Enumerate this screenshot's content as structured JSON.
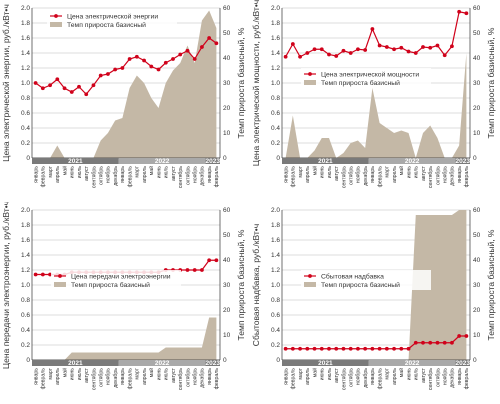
{
  "colors": {
    "line": "#d0021b",
    "area": "#c4b8a6",
    "grid": "#bdbdbd",
    "axis": "#333333",
    "year_band_dark": "#7a7a7a",
    "year_band_light": "#a9a9a9"
  },
  "months": [
    "январь",
    "февраль",
    "март",
    "апрель",
    "май",
    "июнь",
    "июль",
    "август",
    "сентябрь",
    "октябрь",
    "ноябрь",
    "декабрь",
    "январь",
    "февраль",
    "март",
    "апрель",
    "май",
    "июнь",
    "июль",
    "август",
    "сентябрь",
    "октябрь",
    "ноябрь",
    "декабрь",
    "январь",
    "февраль"
  ],
  "years": [
    {
      "label": "2021",
      "start": 0,
      "end": 11
    },
    {
      "label": "2022",
      "start": 12,
      "end": 23
    },
    {
      "label": "2023",
      "start": 24,
      "end": 25
    }
  ],
  "chart_data": [
    {
      "type": "line",
      "ylabel": "Цена электрической энергии, руб./кВт•ч",
      "y2label": "Темп прироста базисный, %",
      "ylim": [
        0,
        2.0
      ],
      "y_ticks": [
        "0",
        "0.2",
        "0.4",
        "0.6",
        "0.8",
        "1.0",
        "1.2",
        "1.4",
        "1.6",
        "1.8",
        "2.0"
      ],
      "y2lim": [
        0,
        60
      ],
      "y2_ticks": [
        "0",
        "10",
        "20",
        "30",
        "40",
        "50",
        "60"
      ],
      "legend": [
        "Цена электрической энергии",
        "Темп прироста базисный"
      ],
      "legend_position": "top-left",
      "series": [
        {
          "name": "Цена электрической энергии",
          "axis": "left",
          "values": [
            1.0,
            0.93,
            0.97,
            1.05,
            0.93,
            0.88,
            0.95,
            0.85,
            0.97,
            1.1,
            1.12,
            1.18,
            1.2,
            1.32,
            1.35,
            1.3,
            1.22,
            1.18,
            1.27,
            1.32,
            1.38,
            1.43,
            1.32,
            1.48,
            1.6,
            1.53
          ]
        },
        {
          "name": "Темп прироста базисный",
          "axis": "right",
          "values": [
            0,
            0,
            0,
            5,
            0,
            0,
            0,
            0,
            0,
            7,
            10,
            15,
            16,
            28,
            33,
            30,
            24,
            20,
            30,
            35,
            38,
            45,
            38,
            55,
            59,
            52
          ]
        }
      ]
    },
    {
      "type": "line",
      "ylabel": "Цена электрической мощности, руб./кВт•ч",
      "y2label": "Темп прироста базисный, %",
      "ylim": [
        0,
        2.0
      ],
      "y_ticks": [
        "0",
        "0.2",
        "0.4",
        "0.6",
        "0.8",
        "1.0",
        "1.2",
        "1.4",
        "1.6",
        "1.8",
        "2.0"
      ],
      "y2lim": [
        0,
        60
      ],
      "y2_ticks": [
        "0",
        "10",
        "20",
        "30",
        "40",
        "50",
        "60"
      ],
      "legend": [
        "Цена электрической мощности",
        "Темп прироста базисный"
      ],
      "legend_position": "center",
      "series": [
        {
          "name": "Цена электрической мощности",
          "axis": "left",
          "values": [
            1.35,
            1.52,
            1.35,
            1.4,
            1.45,
            1.45,
            1.38,
            1.36,
            1.43,
            1.4,
            1.45,
            1.44,
            1.72,
            1.5,
            1.48,
            1.45,
            1.47,
            1.42,
            1.4,
            1.48,
            1.47,
            1.5,
            1.37,
            1.49,
            1.95,
            1.93
          ]
        },
        {
          "name": "Темп прироста базисный",
          "axis": "right",
          "values": [
            0,
            17,
            0,
            0,
            3,
            8,
            8,
            0,
            2,
            6,
            7,
            4,
            28,
            14,
            12,
            10,
            11,
            10,
            0,
            10,
            13,
            8,
            0,
            0,
            5,
            42
          ]
        }
      ]
    },
    {
      "type": "line",
      "ylabel": "Цена передачи электроэнергии, руб./кВт•ч",
      "y2label": "Темп прироста базисный, %",
      "ylim": [
        0,
        2.0
      ],
      "y_ticks": [
        "0",
        "0.2",
        "0.4",
        "0.6",
        "0.8",
        "1.0",
        "1.2",
        "1.4",
        "1.6",
        "1.8",
        "2.0"
      ],
      "y2lim": [
        0,
        60
      ],
      "y2_ticks": [
        "0",
        "10",
        "20",
        "30",
        "40",
        "50",
        "60"
      ],
      "legend": [
        "Цена передачи электроэнергии",
        "Темп прироста базисный"
      ],
      "legend_position": "center",
      "series": [
        {
          "name": "Цена передачи электроэнергии",
          "axis": "left",
          "values": [
            1.14,
            1.14,
            1.14,
            1.14,
            1.14,
            1.17,
            1.17,
            1.17,
            1.17,
            1.17,
            1.17,
            1.17,
            1.17,
            1.17,
            1.17,
            1.17,
            1.17,
            1.17,
            1.2,
            1.2,
            1.2,
            1.2,
            1.2,
            1.2,
            1.33,
            1.33
          ]
        },
        {
          "name": "Темп прироста базисный",
          "axis": "right",
          "values": [
            0,
            0,
            0,
            0,
            0,
            3,
            3,
            3,
            3,
            3,
            3,
            3,
            3,
            3,
            3,
            3,
            3,
            3,
            5,
            5,
            5,
            5,
            5,
            5,
            17,
            17
          ]
        }
      ]
    },
    {
      "type": "line",
      "ylabel": "Сбытовая надбавка, руб./кВт•ч",
      "y2label": "Темп прироста базисный, %",
      "ylim": [
        0,
        2.0
      ],
      "y_ticks": [
        "0",
        "0.2",
        "0.4",
        "0.6",
        "0.8",
        "1.0",
        "1.2",
        "1.4",
        "1.6",
        "1.8",
        "2.0"
      ],
      "y2lim": [
        0,
        60
      ],
      "y2_ticks": [
        "0",
        "10",
        "20",
        "30",
        "40",
        "50",
        "60"
      ],
      "legend": [
        "Сбытовая надбавка",
        "Темп прироста базисный"
      ],
      "legend_position": "center",
      "series": [
        {
          "name": "Сбытовая надбавка",
          "axis": "left",
          "values": [
            0.15,
            0.15,
            0.15,
            0.15,
            0.15,
            0.15,
            0.15,
            0.15,
            0.15,
            0.15,
            0.15,
            0.15,
            0.15,
            0.15,
            0.15,
            0.15,
            0.15,
            0.15,
            0.23,
            0.23,
            0.23,
            0.23,
            0.23,
            0.23,
            0.32,
            0.32
          ]
        },
        {
          "name": "Темп прироста базисный",
          "axis": "right",
          "values": [
            0,
            0,
            0,
            0,
            0,
            0,
            0,
            0,
            0,
            0,
            0,
            0,
            0,
            0,
            0,
            0,
            0,
            0,
            58,
            58,
            58,
            58,
            58,
            58,
            60,
            60
          ]
        }
      ]
    }
  ]
}
